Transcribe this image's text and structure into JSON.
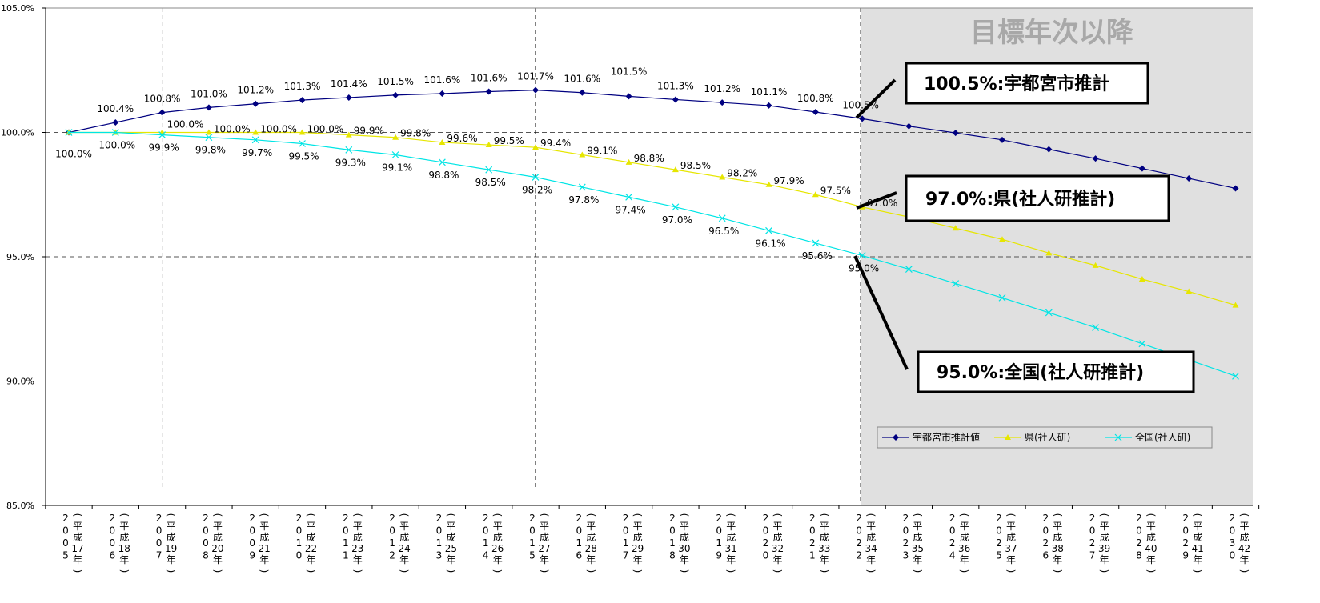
{
  "chart_data": {
    "type": "line",
    "categories": [
      {
        "year": "2005",
        "era": "(平成17年)"
      },
      {
        "year": "2006",
        "era": "(平成18年)"
      },
      {
        "year": "2007",
        "era": "(平成19年)"
      },
      {
        "year": "2008",
        "era": "(平成20年)"
      },
      {
        "year": "2009",
        "era": "(平成21年)"
      },
      {
        "year": "2010",
        "era": "(平成22年)"
      },
      {
        "year": "2011",
        "era": "(平成23年)"
      },
      {
        "year": "2012",
        "era": "(平成24年)"
      },
      {
        "year": "2013",
        "era": "(平成25年)"
      },
      {
        "year": "2014",
        "era": "(平成26年)"
      },
      {
        "year": "2015",
        "era": "(平成27年)"
      },
      {
        "year": "2016",
        "era": "(平成28年)"
      },
      {
        "year": "2017",
        "era": "(平成29年)"
      },
      {
        "year": "2018",
        "era": "(平成30年)"
      },
      {
        "year": "2019",
        "era": "(平成31年)"
      },
      {
        "year": "2020",
        "era": "(平成32年)"
      },
      {
        "year": "2021",
        "era": "(平成33年)"
      },
      {
        "year": "2022",
        "era": "(平成34年)"
      },
      {
        "year": "2023",
        "era": "(平成35年)"
      },
      {
        "year": "2024",
        "era": "(平成36年)"
      },
      {
        "year": "2025",
        "era": "(平成37年)"
      },
      {
        "year": "2026",
        "era": "(平成38年)"
      },
      {
        "year": "2027",
        "era": "(平成39年)"
      },
      {
        "year": "2028",
        "era": "(平成40年)"
      },
      {
        "year": "2029",
        "era": "(平成41年)"
      },
      {
        "year": "2030",
        "era": "(平成42年)"
      }
    ],
    "ylim": [
      85.0,
      105.0
    ],
    "yticks": [
      "85.0%",
      "90.0%",
      "95.0%",
      "100.0%",
      "105.0%"
    ],
    "yticks_values": [
      85,
      90,
      95,
      100,
      105
    ],
    "grid": "horizontal dashed at 90, 95, 100",
    "series": [
      {
        "name": "宇都宮市推計値",
        "color": "#000080",
        "marker": "diamond",
        "values": [
          100.0,
          100.4,
          100.8,
          101.0,
          101.15,
          101.3,
          101.4,
          101.5,
          101.56,
          101.64,
          101.7,
          101.6,
          101.45,
          101.32,
          101.2,
          101.08,
          100.82,
          100.55,
          100.25,
          99.98,
          99.7,
          99.32,
          98.95,
          98.55,
          98.15,
          97.75
        ],
        "labels": [
          "",
          "100.4%",
          "100.8%",
          "101.0%",
          "101.2%",
          "101.3%",
          "101.4%",
          "101.5%",
          "101.6%",
          "101.6%",
          "101.7%",
          "101.6%",
          "101.5%",
          "101.3%",
          "101.2%",
          "101.1%",
          "100.8%",
          "100.5%",
          "",
          "",
          "",
          "",
          "",
          "",
          "",
          ""
        ]
      },
      {
        "name": "県(社人研)",
        "color": "#e6e600",
        "marker": "triangle",
        "values": [
          100.0,
          100.0,
          100.0,
          100.0,
          100.0,
          100.0,
          99.9,
          99.8,
          99.6,
          99.5,
          99.4,
          99.1,
          98.8,
          98.5,
          98.2,
          97.9,
          97.5,
          97.0,
          96.6,
          96.15,
          95.7,
          95.15,
          94.65,
          94.1,
          93.6,
          93.05
        ],
        "labels": [
          "",
          "",
          "100.0%",
          "100.0%",
          "100.0%",
          "100.0%",
          "99.9%",
          "99.8%",
          "99.6%",
          "99.5%",
          "99.4%",
          "99.1%",
          "98.8%",
          "98.5%",
          "98.2%",
          "97.9%",
          "97.5%",
          "97.0%",
          "",
          "",
          "",
          "",
          "",
          "",
          "",
          ""
        ]
      },
      {
        "name": "全国(社人研)",
        "color": "#00e5e5",
        "marker": "x",
        "values": [
          100.0,
          100.0,
          99.9,
          99.8,
          99.7,
          99.55,
          99.3,
          99.1,
          98.8,
          98.5,
          98.2,
          97.8,
          97.4,
          97.0,
          96.55,
          96.05,
          95.55,
          95.05,
          94.5,
          93.92,
          93.35,
          92.75,
          92.15,
          91.5,
          90.85,
          90.2
        ],
        "labels": [
          "100.0%",
          "100.0%",
          "99.9%",
          "99.8%",
          "99.7%",
          "99.5%",
          "99.3%",
          "99.1%",
          "98.8%",
          "98.5%",
          "98.2%",
          "97.8%",
          "97.4%",
          "97.0%",
          "96.5%",
          "96.1%",
          "95.6%",
          "95.0%",
          "",
          "",
          "",
          "",
          "",
          "",
          "",
          ""
        ]
      }
    ],
    "banner": "目標年次以降",
    "callouts": [
      {
        "text": "100.5%:宇都宮市推計"
      },
      {
        "text": "97.0%:県(社人研推計)"
      },
      {
        "text": "95.0%:全国(社人研推計)"
      }
    ],
    "legend_position": "bottom-right inside shaded area"
  }
}
